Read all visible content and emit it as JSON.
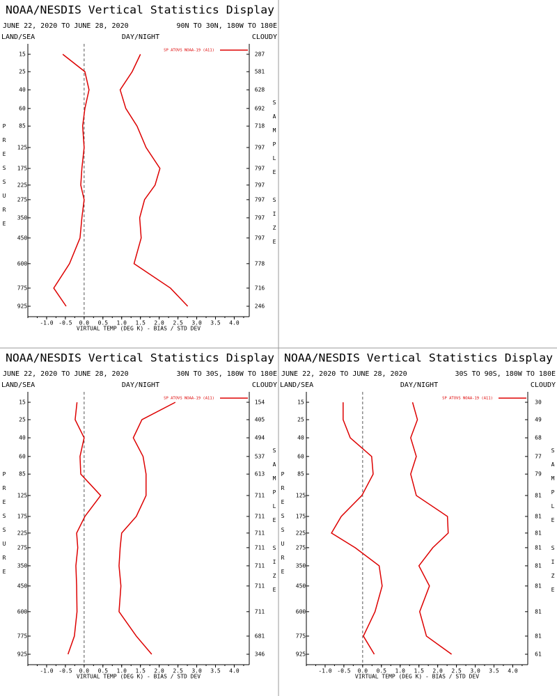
{
  "chart_data": [
    {
      "type": "line",
      "title": "NOAA/NESDIS Vertical Statistics Display",
      "date_range": "JUNE 22, 2020 TO JUNE 28, 2020",
      "region": "90N TO 30N, 180W TO 180E",
      "left_label": "LAND/SEA",
      "center_label": "DAY/NIGHT",
      "right_label": "CLOUDY",
      "legend": "SP ATOVS NOAA-19 (A11)",
      "y_label": "PRESSURE",
      "y2_label": "SAMPLE SIZE",
      "x_label": "VIRTUAL TEMP (DEG K) - BIAS / STD DEV",
      "categories": [
        15,
        25,
        40,
        60,
        85,
        125,
        175,
        225,
        275,
        350,
        450,
        600,
        775,
        925
      ],
      "sample_size": [
        287,
        581,
        628,
        692,
        718,
        797,
        797,
        797,
        797,
        797,
        797,
        778,
        716,
        246
      ],
      "xlim": [
        -1.5,
        4.4
      ],
      "xticks": [
        {
          "value": -1,
          "label": "-1.0"
        },
        {
          "value": -0.5,
          "label": "-0.5"
        },
        {
          "value": 0,
          "label": "0.0"
        },
        {
          "value": 0.5,
          "label": "0.5"
        },
        {
          "value": 1,
          "label": "1.0"
        },
        {
          "value": 1.5,
          "label": "1.5"
        },
        {
          "value": 2,
          "label": "2.0"
        },
        {
          "value": 2.5,
          "label": "2.5"
        },
        {
          "value": 3,
          "label": "3.0"
        },
        {
          "value": 3.5,
          "label": "3.5"
        },
        {
          "value": 4,
          "label": "4.0"
        }
      ],
      "series": [
        {
          "color": "#dd0000",
          "values": [
            -0.57,
            0.02,
            0.13,
            0.02,
            -0.04,
            0,
            -0.06,
            -0.09,
            0,
            -0.06,
            -0.11,
            -0.39,
            -0.81,
            -0.48
          ]
        },
        {
          "color": "#dd0000",
          "values": [
            1.5,
            1.28,
            0.96,
            1.11,
            1.41,
            1.65,
            2.02,
            1.89,
            1.61,
            1.48,
            1.52,
            1.33,
            2.3,
            2.76
          ]
        }
      ]
    },
    {
      "type": "line",
      "title": "NOAA/NESDIS Vertical Statistics Display",
      "date_range": "JUNE 22, 2020 TO JUNE 28, 2020",
      "region": "30N TO 30S, 180W TO 180E",
      "left_label": "LAND/SEA",
      "center_label": "DAY/NIGHT",
      "right_label": "CLOUDY",
      "legend": "SP ATOVS NOAA-19 (A11)",
      "y_label": "PRESSURE",
      "y2_label": "SAMPLE SIZE",
      "x_label": "VIRTUAL TEMP (DEG K) - BIAS / STD DEV",
      "categories": [
        15,
        25,
        40,
        60,
        85,
        125,
        175,
        225,
        275,
        350,
        450,
        600,
        775,
        925
      ],
      "sample_size": [
        154,
        405,
        494,
        537,
        613,
        711,
        711,
        711,
        711,
        711,
        711,
        711,
        681,
        346
      ],
      "xlim": [
        -1.5,
        4.4
      ],
      "xticks": [
        {
          "value": -1,
          "label": "-1.0"
        },
        {
          "value": -0.5,
          "label": "-0.5"
        },
        {
          "value": 0,
          "label": "0.0"
        },
        {
          "value": 0.5,
          "label": "0.5"
        },
        {
          "value": 1,
          "label": "1.0"
        },
        {
          "value": 1.5,
          "label": "1.5"
        },
        {
          "value": 2,
          "label": "2.0"
        },
        {
          "value": 2.5,
          "label": "2.5"
        },
        {
          "value": 3,
          "label": "3.0"
        },
        {
          "value": 3.5,
          "label": "3.5"
        },
        {
          "value": 4,
          "label": "4.0"
        }
      ],
      "series": [
        {
          "color": "#dd0000",
          "values": [
            -0.19,
            -0.24,
            0,
            -0.11,
            -0.09,
            0.44,
            0.02,
            -0.2,
            -0.17,
            -0.22,
            -0.2,
            -0.19,
            -0.26,
            -0.43
          ]
        },
        {
          "color": "#dd0000",
          "values": [
            2.43,
            1.54,
            1.31,
            1.57,
            1.65,
            1.65,
            1.39,
            1.0,
            0.96,
            0.93,
            0.98,
            0.93,
            1.39,
            1.8
          ]
        }
      ]
    },
    {
      "type": "line",
      "title": "NOAA/NESDIS Vertical Statistics Display",
      "date_range": "JUNE 22, 2020 TO JUNE 28, 2020",
      "region": "30S TO 90S, 180W TO 180E",
      "left_label": "LAND/SEA",
      "center_label": "DAY/NIGHT",
      "right_label": "CLOUDY",
      "legend": "SP ATOVS NOAA-19 (A11)",
      "y_label": "PRESSURE",
      "y2_label": "SAMPLE SIZE",
      "x_label": "VIRTUAL TEMP (DEG K) - BIAS / STD DEV",
      "categories": [
        15,
        25,
        40,
        60,
        85,
        125,
        175,
        225,
        275,
        350,
        450,
        600,
        775,
        925
      ],
      "sample_size": [
        30,
        49,
        68,
        77,
        79,
        81,
        81,
        81,
        81,
        81,
        81,
        81,
        81,
        61
      ],
      "xlim": [
        -1.5,
        4.4
      ],
      "xticks": [
        {
          "value": -1,
          "label": "-1.0"
        },
        {
          "value": -0.5,
          "label": "-0.5"
        },
        {
          "value": 0,
          "label": "0.0"
        },
        {
          "value": 0.5,
          "label": "0.5"
        },
        {
          "value": 1,
          "label": "1.0"
        },
        {
          "value": 1.5,
          "label": "1.5"
        },
        {
          "value": 2,
          "label": "2.0"
        },
        {
          "value": 2.5,
          "label": "2.5"
        },
        {
          "value": 3,
          "label": "3.0"
        },
        {
          "value": 3.5,
          "label": "3.5"
        },
        {
          "value": 4,
          "label": "4.0"
        }
      ],
      "series": [
        {
          "color": "#dd0000",
          "values": [
            -0.52,
            -0.52,
            -0.33,
            0.24,
            0.28,
            -0.02,
            -0.57,
            -0.83,
            -0.2,
            0.44,
            0.52,
            0.33,
            0.02,
            0.31
          ]
        },
        {
          "color": "#dd0000",
          "values": [
            1.33,
            1.46,
            1.28,
            1.43,
            1.28,
            1.43,
            2.26,
            2.28,
            1.87,
            1.5,
            1.78,
            1.52,
            1.7,
            2.37
          ]
        }
      ]
    }
  ]
}
